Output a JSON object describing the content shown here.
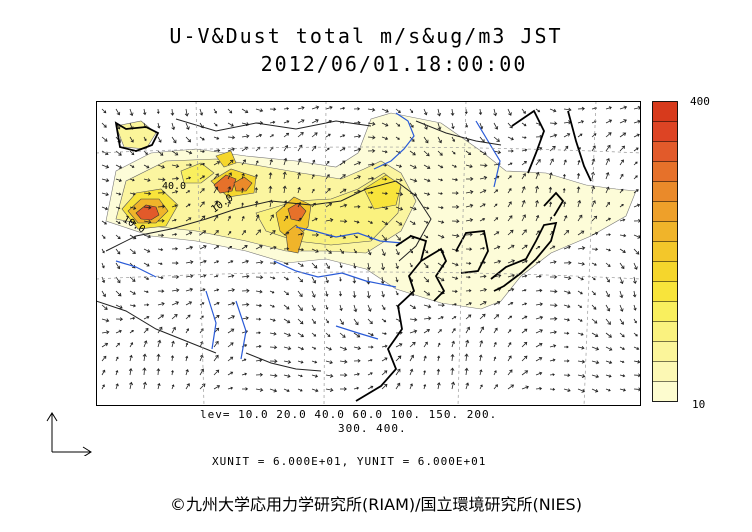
{
  "title": "U-V&Dust total m/s&ug/m3 JST",
  "datetime": "2012/06/01.18:00:00",
  "colorbar": {
    "max_label": "400",
    "min_label": "10",
    "colors": [
      "#fdfccf",
      "#fcf8b4",
      "#fbf59a",
      "#faf27f",
      "#f9ef5e",
      "#f8e43b",
      "#f5d62c",
      "#f3c72a",
      "#f0b42a",
      "#eea02a",
      "#ea8a2a",
      "#e6712a",
      "#e25a2a",
      "#dd4424",
      "#d73a1c"
    ]
  },
  "levels": {
    "line1": "lev= 10.0 20.0 40.0 60.0 100. 150. 200.",
    "line2": "300. 400."
  },
  "units_line": "XUNIT = 6.000E+01, YUNIT = 6.000E+01",
  "contour_labels": [
    "40.0",
    "10.0",
    "10.0"
  ],
  "copyright": "©九州大学応用力学研究所(RIAM)/国立環境研究所(NIES)"
}
